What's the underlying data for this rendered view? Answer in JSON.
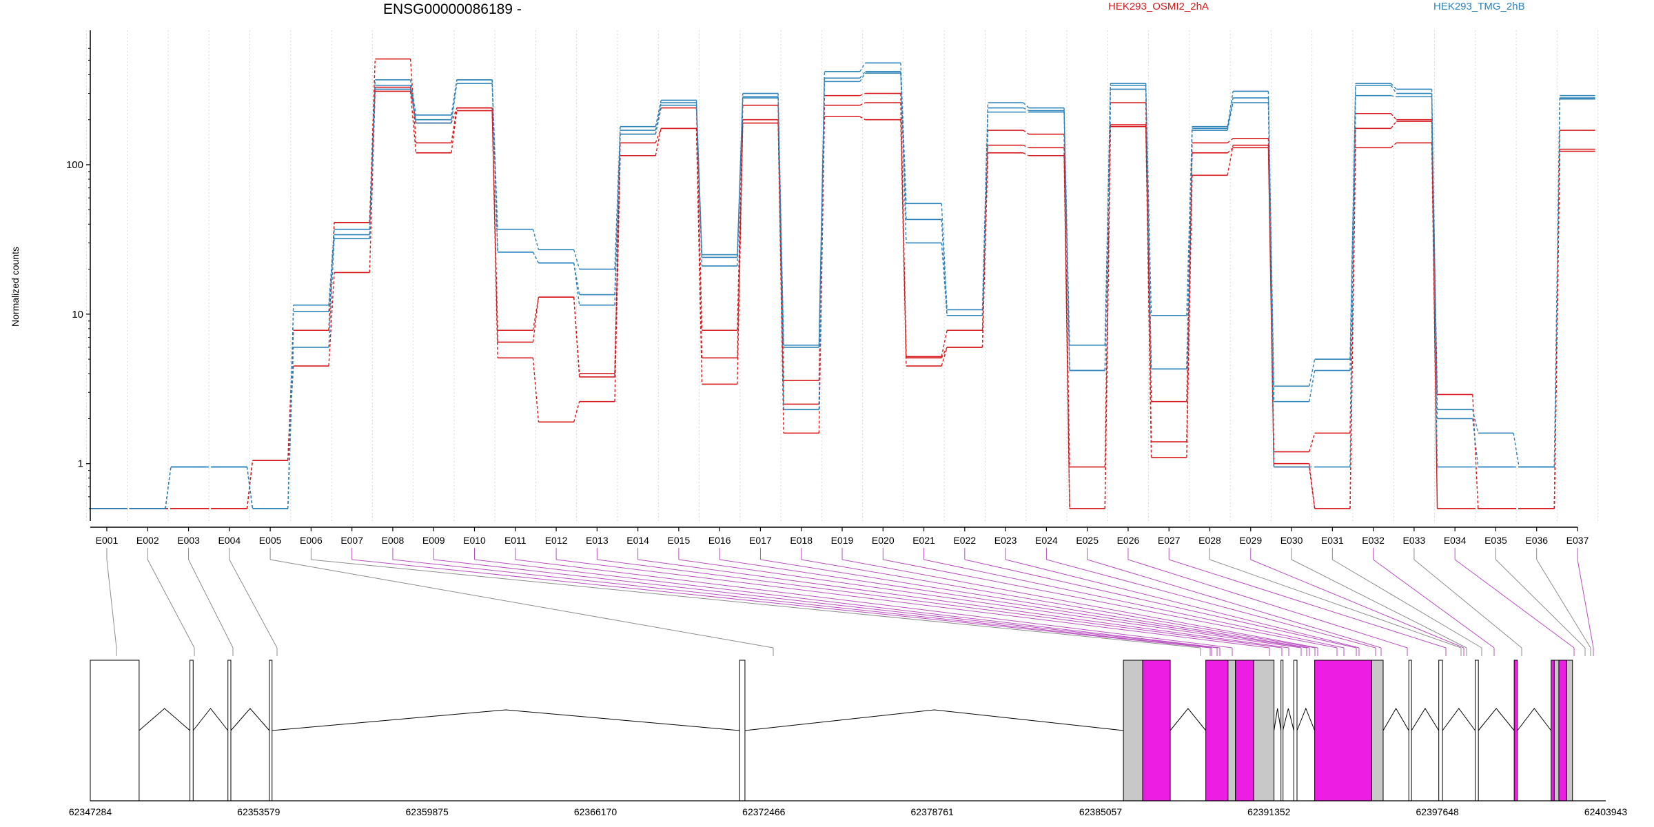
{
  "chart_data": {
    "type": "line",
    "title": "ENSG00000086189 -",
    "ylabel": "Normalized counts",
    "yscale": "log",
    "yticks": [
      1,
      10,
      100
    ],
    "ytick_labels": [
      "1",
      "10",
      "100"
    ],
    "grid": "vertical only",
    "colors": {
      "HEK293_OSMI2_2hA": "#d7191c",
      "HEK293_TMG_2hB": "#2b83ba",
      "gene_grey": "#c8c8c8",
      "gene_magenta": "#ee1de4"
    },
    "categories": [
      "E001",
      "E002",
      "E003",
      "E004",
      "E005",
      "E006",
      "E007",
      "E008",
      "E009",
      "E010",
      "E011",
      "E012",
      "E013",
      "E014",
      "E015",
      "E016",
      "E017",
      "E018",
      "E019",
      "E020",
      "E021",
      "E022",
      "E023",
      "E024",
      "E025",
      "E026",
      "E027",
      "E028",
      "E029",
      "E030",
      "E031",
      "E032",
      "E033",
      "E034",
      "E035",
      "E036",
      "E037"
    ],
    "series": [
      {
        "name": "HEK293_OSMI2_2hA",
        "values": [
          0.5,
          0.5,
          0.5,
          0.5,
          1.05,
          7.8,
          41,
          510,
          140,
          240,
          7.8,
          13,
          3.8,
          160,
          240,
          7.8,
          250,
          3.6,
          290,
          300,
          5.2,
          7.8,
          170,
          160,
          0.95,
          260,
          1.4,
          140,
          150,
          1.2,
          1.6,
          220,
          200,
          2.9,
          0.5,
          0.5,
          170
        ]
      },
      {
        "name": "HEK293_OSMI2_2hA",
        "values": [
          0.5,
          0.5,
          0.5,
          0.5,
          1.05,
          7.8,
          41,
          330,
          190,
          240,
          6.5,
          13,
          4.0,
          140,
          175,
          5.1,
          200,
          2.5,
          250,
          260,
          5.1,
          6.0,
          135,
          130,
          0.5,
          185,
          2.6,
          120,
          130,
          1.0,
          0.5,
          175,
          195,
          0.5,
          0.5,
          0.5,
          127
        ]
      },
      {
        "name": "HEK293_OSMI2_2hA",
        "values": [
          0.5,
          0.5,
          0.5,
          0.5,
          1.05,
          4.5,
          19,
          310,
          120,
          230,
          5.1,
          1.9,
          2.6,
          115,
          175,
          3.4,
          190,
          1.6,
          210,
          200,
          4.5,
          6.0,
          120,
          115,
          0.5,
          180,
          1.1,
          85,
          135,
          0.95,
          0.5,
          130,
          140,
          0.5,
          0.5,
          0.5,
          123
        ]
      },
      {
        "name": "HEK293_TMG_2hB",
        "values": [
          0.5,
          0.5,
          0.95,
          0.95,
          0.5,
          11.5,
          37,
          370,
          215,
          370,
          37,
          27,
          20,
          180,
          270,
          25,
          300,
          6.2,
          420,
          480,
          55,
          10.7,
          260,
          240,
          6.2,
          350,
          9.8,
          180,
          310,
          3.3,
          5.0,
          350,
          320,
          2.3,
          1.6,
          0.95,
          290
        ]
      },
      {
        "name": "HEK293_TMG_2hB",
        "values": [
          0.5,
          0.5,
          0.95,
          0.95,
          0.5,
          10.4,
          34,
          340,
          200,
          370,
          26,
          22,
          13.5,
          170,
          260,
          24,
          285,
          6.0,
          380,
          420,
          43,
          9.8,
          240,
          230,
          4.2,
          340,
          4.3,
          175,
          280,
          2.6,
          4.2,
          340,
          300,
          2.0,
          0.95,
          0.95,
          280
        ]
      },
      {
        "name": "HEK293_TMG_2hB",
        "values": [
          0.5,
          0.5,
          0.95,
          0.95,
          0.5,
          6.0,
          32,
          320,
          190,
          350,
          26,
          22,
          11.5,
          160,
          250,
          21,
          280,
          2.3,
          360,
          410,
          30,
          9.8,
          225,
          225,
          4.2,
          320,
          4.3,
          170,
          260,
          0.95,
          0.95,
          290,
          285,
          0.95,
          0.95,
          0.95,
          275
        ]
      }
    ],
    "gene_model": {
      "coordinate_labels": [
        "62347284",
        "62353579",
        "62359875",
        "62366170",
        "62372466",
        "62378761",
        "62385057",
        "62391352",
        "62397648",
        "62403943"
      ]
    }
  }
}
